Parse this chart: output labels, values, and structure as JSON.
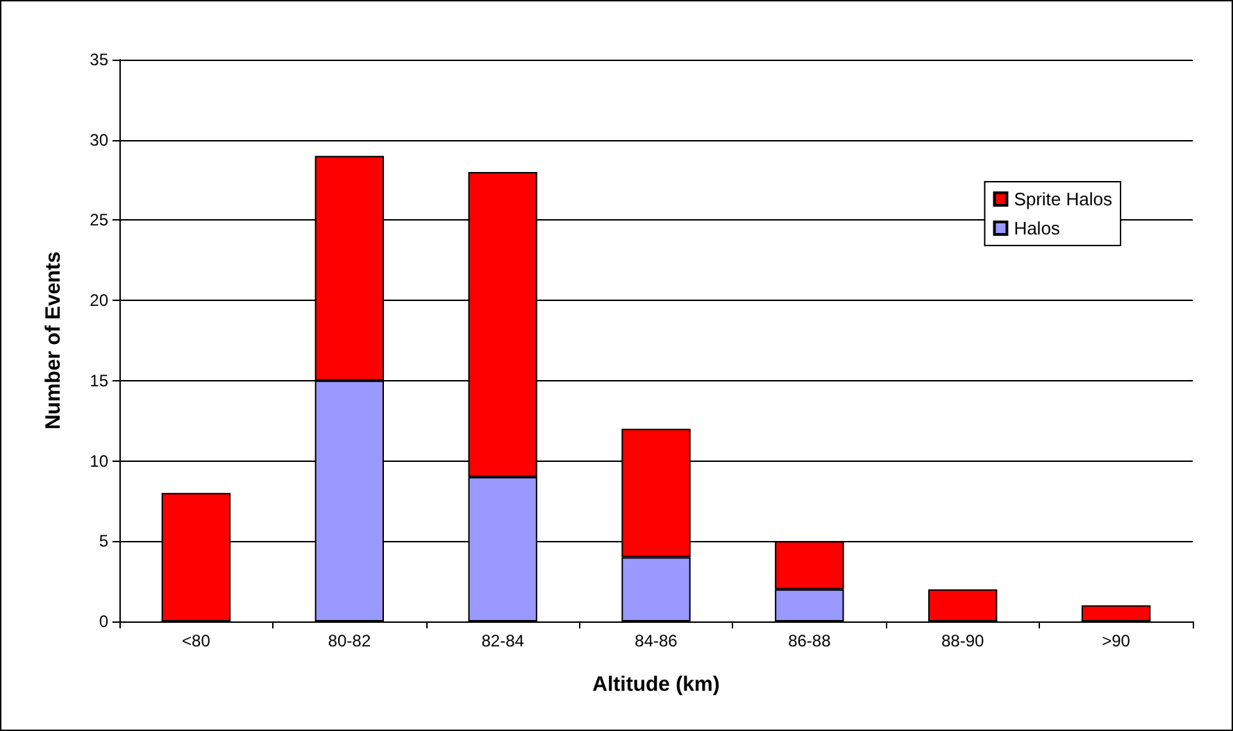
{
  "chart_data": {
    "type": "bar",
    "xlabel": "Altitude (km)",
    "ylabel": "Number of Events",
    "categories": [
      "<80",
      "80-82",
      "82-84",
      "84-86",
      "86-88",
      "88-90",
      ">90"
    ],
    "stacked": true,
    "series": [
      {
        "name": "Halos",
        "color": "#9999ff",
        "values": [
          0,
          15,
          9,
          4,
          2,
          0,
          0
        ]
      },
      {
        "name": "Sprite Halos",
        "color": "#ff0000",
        "values": [
          8,
          14,
          19,
          8,
          3,
          2,
          1
        ]
      }
    ],
    "ylim": [
      0,
      35
    ],
    "yticks": [
      0,
      5,
      10,
      15,
      20,
      25,
      30,
      35
    ],
    "grid": "y",
    "legend": "top right"
  }
}
